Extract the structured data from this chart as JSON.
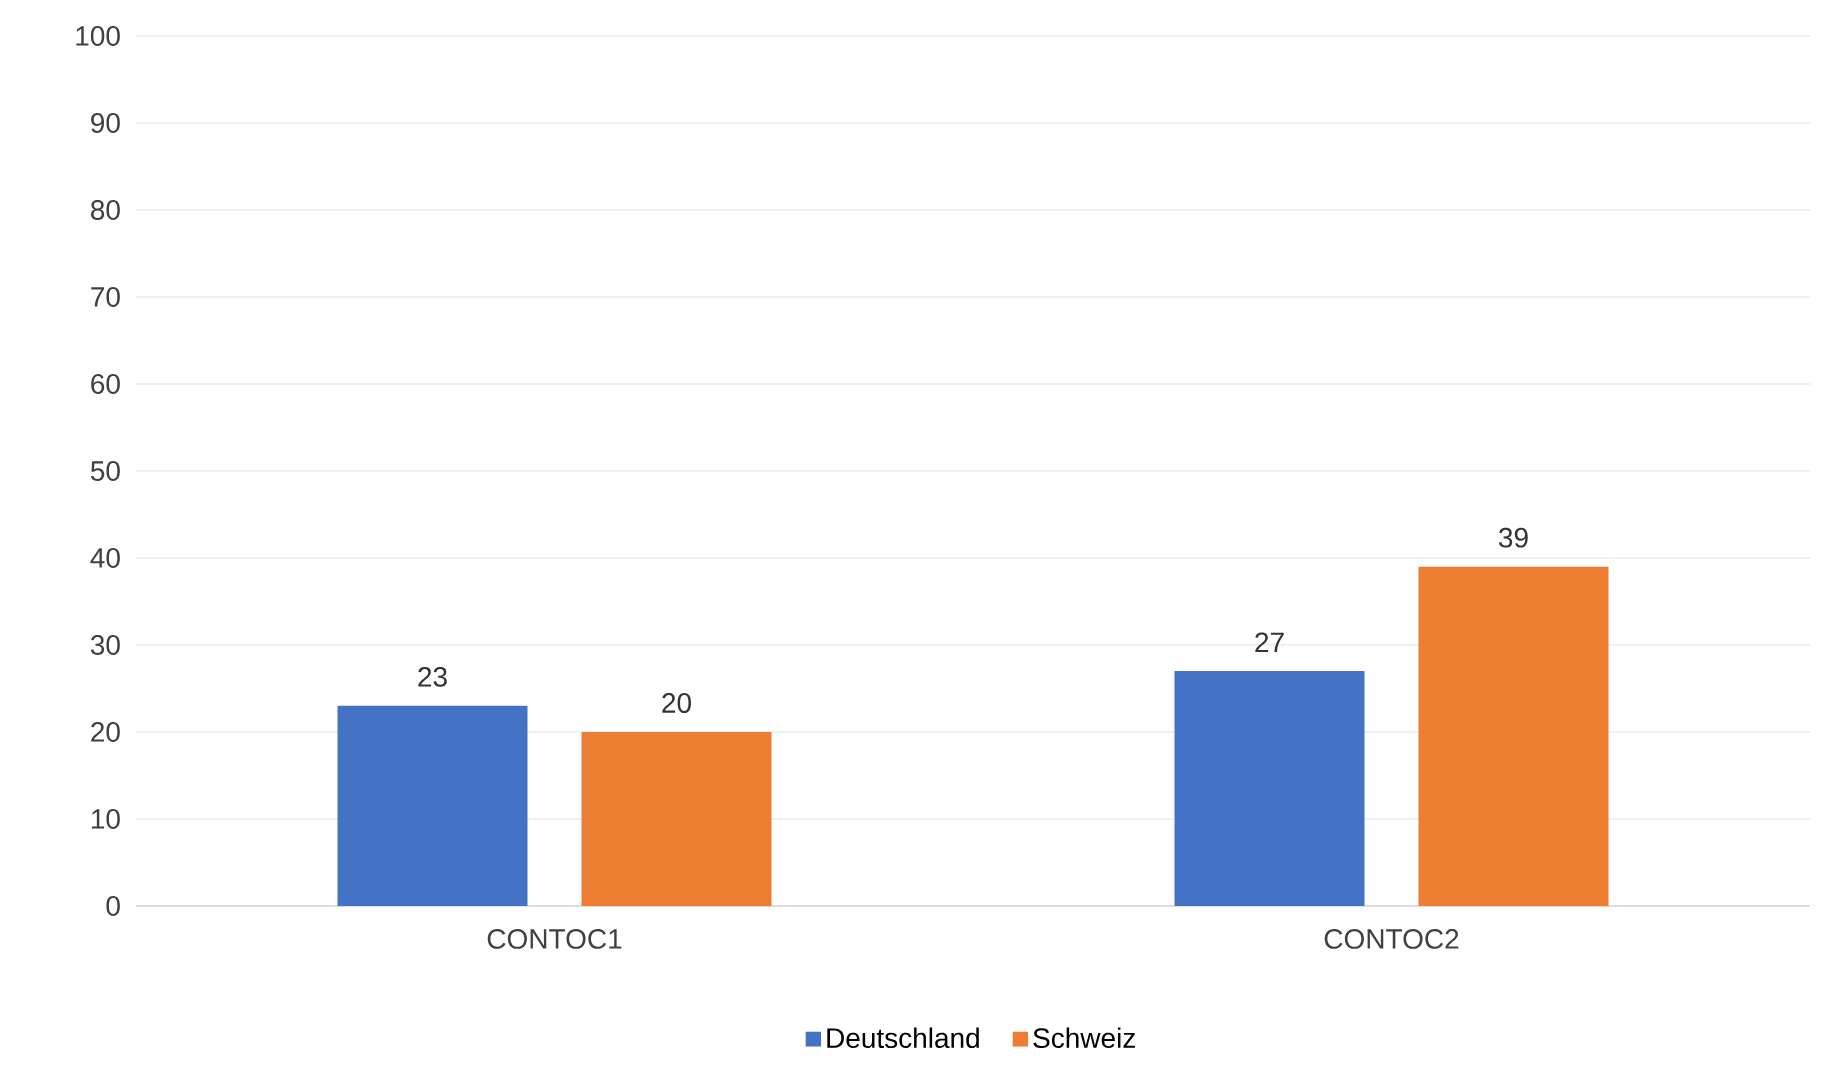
{
  "chart_data": {
    "type": "bar",
    "categories": [
      "CONTOC1",
      "CONTOC2"
    ],
    "series": [
      {
        "name": "Deutschland",
        "color": "#4472c4",
        "values": [
          23,
          27
        ]
      },
      {
        "name": "Schweiz",
        "color": "#ed7d31",
        "values": [
          20,
          39
        ]
      }
    ],
    "ylim": [
      0,
      100
    ],
    "yticks": [
      0,
      10,
      20,
      30,
      40,
      50,
      60,
      70,
      80,
      90,
      100
    ],
    "grid": "y",
    "legend": "bottom",
    "data_labels": true
  }
}
